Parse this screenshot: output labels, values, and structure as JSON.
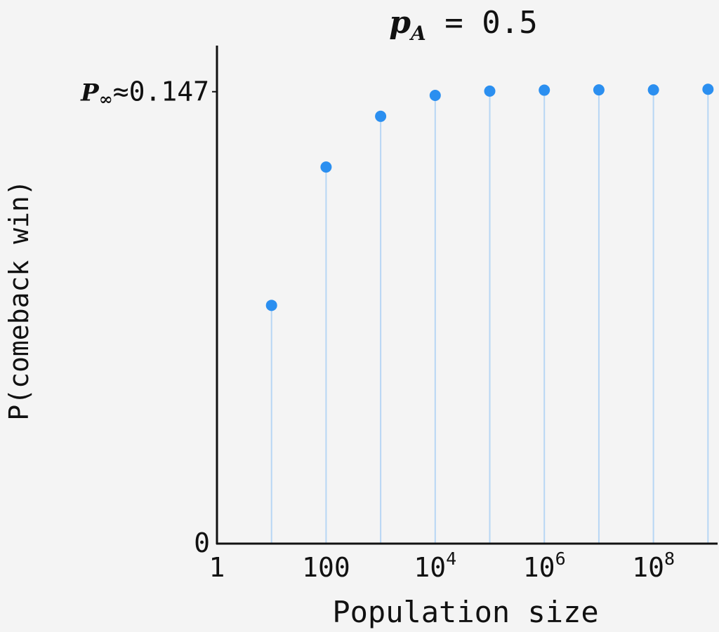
{
  "chart_data": {
    "type": "scatter",
    "style": "stem",
    "title": {
      "symbol": "p",
      "subscript": "A",
      "rest": " = 0.5"
    },
    "xlabel": "Population size",
    "ylabel": "P(comeback win)",
    "x_scale": "log",
    "x_ticks": [
      {
        "value": 1,
        "base": "1",
        "exp": ""
      },
      {
        "value": 100,
        "base": "100",
        "exp": ""
      },
      {
        "value": 10000,
        "base": "10",
        "exp": "4"
      },
      {
        "value": 1000000,
        "base": "10",
        "exp": "6"
      },
      {
        "value": 100000000,
        "base": "10",
        "exp": "8"
      }
    ],
    "y_ticks": [
      {
        "value": 0,
        "label": "0"
      }
    ],
    "asymptote_label": {
      "symbol": "P",
      "subscript": "∞",
      "rest": "≈0.147",
      "value": 0.147
    },
    "xlim": [
      1,
      1500000000
    ],
    "ylim": [
      0,
      0.162
    ],
    "color": "#2b8ff0",
    "stem_color": "#b7d6f4",
    "series": [
      {
        "x": [
          10,
          100,
          1000,
          10000,
          100000,
          1000000,
          10000000,
          100000000,
          1000000000
        ],
        "y": [
          0.0775,
          0.1225,
          0.139,
          0.1458,
          0.1472,
          0.1475,
          0.1476,
          0.1476,
          0.1478
        ]
      }
    ],
    "grid": false,
    "legend": "none"
  }
}
